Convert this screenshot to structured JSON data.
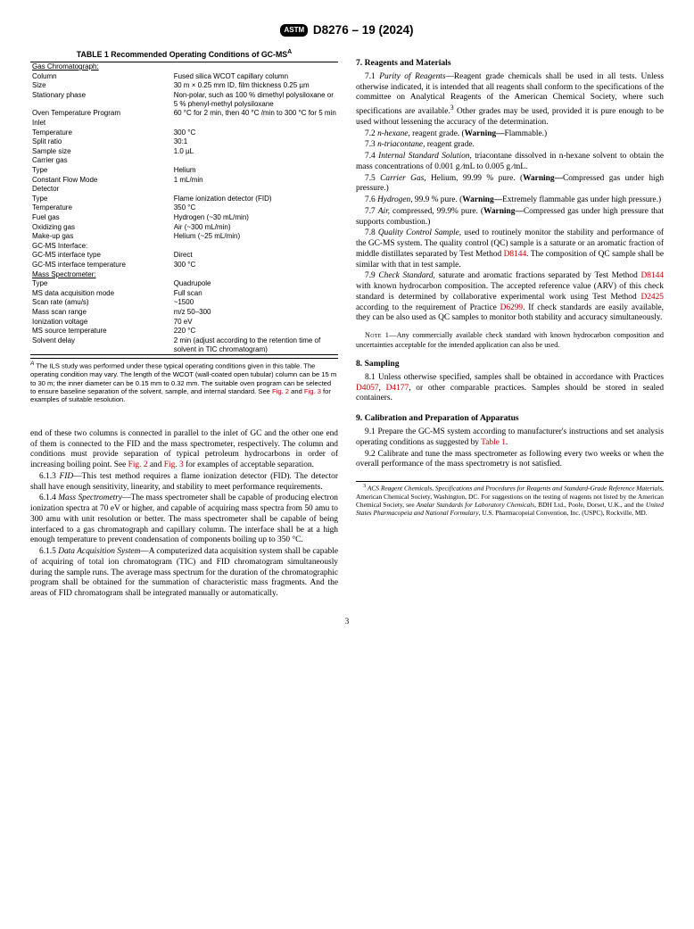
{
  "header": {
    "logo": "ASTM",
    "doc": "D8276 – 19 (2024)"
  },
  "table": {
    "title": "TABLE 1 Recommended Operating Conditions of GC-MS",
    "sup": "A",
    "rows": [
      {
        "s": 1,
        "l": "Gas Chromatograph:",
        "v": ""
      },
      {
        "l": "Column",
        "v": "Fused silica WCOT capillary column"
      },
      {
        "l": "Size",
        "v": "30 m × 0.25 mm ID, film thickness 0.25 µm"
      },
      {
        "l": "Stationary phase",
        "v": "Non-polar, such as 100 % dimethyl polysiloxane or 5 % phenyl-methyl polysiloxane"
      },
      {
        "l": "Oven Temperature Program",
        "v": "60 °C for 2 min, then 40 °C /min to 300 °C for 5 min"
      },
      {
        "l": "Inlet",
        "v": ""
      },
      {
        "l": "Temperature",
        "v": "300 °C"
      },
      {
        "l": "Split ratio",
        "v": "30:1"
      },
      {
        "l": "Sample size",
        "v": "1.0 µL"
      },
      {
        "l": "Carrier gas",
        "v": ""
      },
      {
        "l": "Type",
        "v": "Helium"
      },
      {
        "l": "Constant Flow Mode",
        "v": "1 mL/min"
      },
      {
        "l": "Detector",
        "v": ""
      },
      {
        "l": "Type",
        "v": "Flame ionization detector (FID)"
      },
      {
        "l": "Temperature",
        "v": "350 °C"
      },
      {
        "l": "Fuel gas",
        "v": "Hydrogen (~30 mL/min)"
      },
      {
        "l": "Oxidizing gas",
        "v": "Air (~300 mL/min)"
      },
      {
        "l": "Make-up gas",
        "v": "Helium (~25 mL/min)"
      },
      {
        "l": "GC-MS Interface:",
        "v": ""
      },
      {
        "l": "GC-MS interface type",
        "v": "Direct"
      },
      {
        "l": "GC-MS interface temperature",
        "v": "300 °C"
      },
      {
        "s": 1,
        "l": "Mass Spectrometer:",
        "v": ""
      },
      {
        "l": "Type",
        "v": "Quadrupole"
      },
      {
        "l": "MS data acquisition mode",
        "v": "Full scan"
      },
      {
        "l": "Scan rate (amu/s)",
        "v": "~1500"
      },
      {
        "l": "Mass scan range",
        "v": "m/z 50–300"
      },
      {
        "l": "Ionization voltage",
        "v": "70 eV"
      },
      {
        "l": "MS source temperature",
        "v": "220 °C"
      },
      {
        "l": "Solvent delay",
        "v": "2 min (adjust according to the retention time of solvent in TIC chromatogram)"
      }
    ],
    "footnote_pre": " The ILS study was performed under these typical operating conditions given in this table. The operating condition may vary. The length of the WCOT (wall-coated open tubular) column can be 15 m to 30 m; the inner diameter can be 0.15 mm to 0.32 mm. The suitable oven program can be selected to ensure baseline separation of the solvent, sample, and internal standard. See ",
    "fig2": "Fig. 2",
    "and": " and ",
    "fig3": "Fig. 3",
    "footnote_post": " for examples of suitable resolution."
  },
  "left": {
    "p0a": "end of these two columns is connected in parallel to the inlet of GC and the other one end of them is connected to the FID and the mass spectrometer, respectively. The column and conditions must provide separation of typical petroleum hydrocarbons in order of increasing boiling point. See ",
    "p0b": " for examples of acceptable separation.",
    "p1": "6.1.3 FID—This test method requires a flame ionization detector (FID). The detector shall have enough sensitivity, linearity, and stability to meet performance requirements.",
    "p2": "6.1.4 Mass Spectrometry—The mass spectrometer shall be capable of producing electron ionization spectra at 70 eV or higher, and capable of acquiring mass spectra from 50 amu to 300 amu with unit resolution or better. The mass spectrometer shall be capable of being interfaced to a gas chromatograph and capillary column. The interface shall be at a high enough temperature to prevent condensation of components boiling up to 350 °C.",
    "p3": "6.1.5 Data Acquisition System—A computerized data acquisition system shall be capable of acquiring of total ion chromatogram (TIC) and FID chromatogram simultaneously during the sample runs. The average mass spectrum for the duration of the chromatographic program shall be obtained for the summation of characteristic mass fragments. And the areas of FID chromatogram shall be integrated manually or automatically."
  },
  "right": {
    "h7": "7. Reagents and Materials",
    "p71a": "7.1 ",
    "p71i": "Purity of Reagents",
    "p71b": "—Reagent grade chemicals shall be used in all tests. Unless otherwise indicated, it is intended that all reagents shall conform to the specifications of the committee on Analytical Reagents of the American Chemical Society, where such specifications are available.",
    "p71c": " Other grades may be used, provided it is pure enough to be used without lessening the accuracy of the determination.",
    "p72a": "7.2 ",
    "p72i": "n-hexane,",
    "p72b": " reagent grade. (",
    "p72w": "Warning—",
    "p72c": "Flammable.)",
    "p73a": "7.3 ",
    "p73i": "n-triacontane,",
    "p73b": " reagent grade.",
    "p74a": "7.4 ",
    "p74i": "Internal Standard Solution,",
    "p74b": " triacontane dissolved in n-hexane solvent to obtain the mass concentrations of 0.001 g ⁄mL to 0.005 g ⁄mL.",
    "p75a": "7.5 ",
    "p75i": "Carrier Gas,",
    "p75b": " Helium, 99.99 % pure. (",
    "p75w": "Warning—",
    "p75c": "Compressed gas under high pressure.)",
    "p76a": "7.6 ",
    "p76i": "Hydrogen,",
    "p76b": " 99.9 % pure. (",
    "p76w": "Warning—",
    "p76c": "Extremely flammable gas under high pressure.)",
    "p77a": "7.7 ",
    "p77i": "Air,",
    "p77b": " compressed, 99.9% pure. (",
    "p77w": "Warning—",
    "p77c": "Compressed gas under high pressure that supports combustion.)",
    "p78a": "7.8 ",
    "p78i": "Quality Control Sample,",
    "p78b": " used to routinely monitor the stability and performance of the GC-MS system. The quality control (QC) sample is a saturate or an aromatic fraction of middle distillates separated by Test Method ",
    "d8144": "D8144",
    "p78c": ". The composition of QC sample shall be similar with that in test sample.",
    "p79a": "7.9 ",
    "p79i": "Check Standard,",
    "p79b": " saturate and aromatic fractions separated by Test Method ",
    "p79c": " with known hydrocarbon composition. The accepted reference value (ARV) of this check standard is determined by collaborative experimental work using Test Method ",
    "d2425": "D2425",
    "p79d": " according to the requirement of Practice ",
    "d6299": "D6299",
    "p79e": ". If check standards are easily available, they can be also used as QC samples to monitor both stability and accuracy simultaneously.",
    "noteLabel": "Note 1—",
    "note": "Any commercially available check standard with known hydrocarbon composition and uncertainties acceptable for the intended application can also be used.",
    "h8": "8. Sampling",
    "p81a": "8.1 Unless otherwise specified, samples shall be obtained in accordance with Practices ",
    "d4057": "D4057",
    "comma": ", ",
    "d4177": "D4177",
    "p81b": ", or other comparable practices. Samples should be stored in sealed containers.",
    "h9": "9. Calibration and Preparation of Apparatus",
    "p91a": "9.1 Prepare the GC-MS system according to manufacturer's instructions and set analysis operating conditions as suggested by ",
    "tab1": "Table 1",
    "p91b": ".",
    "p92": "9.2 Calibrate and tune the mass spectrometer as following every two weeks or when the overall performance of the mass spectrometry is not satisfied.",
    "fn3_sup": "3",
    "fn3a": " ACS Reagent Chemicals, Specifications and Procedures for Reagents and Standard-Grade Reference Materials",
    "fn3b": ", American Chemical Society, Washington, DC. For suggestions on the testing of reagents not listed by the American Chemical Society, see ",
    "fn3c": "Analar Standards for Laboratory Chemicals",
    "fn3d": ", BDH Ltd., Poole, Dorset, U.K., and the ",
    "fn3e": "United States Pharmacopeia and National Formulary",
    "fn3f": ", U.S. Pharmacopeial Convention, Inc. (USPC), Rockville, MD."
  },
  "pagenum": "3"
}
